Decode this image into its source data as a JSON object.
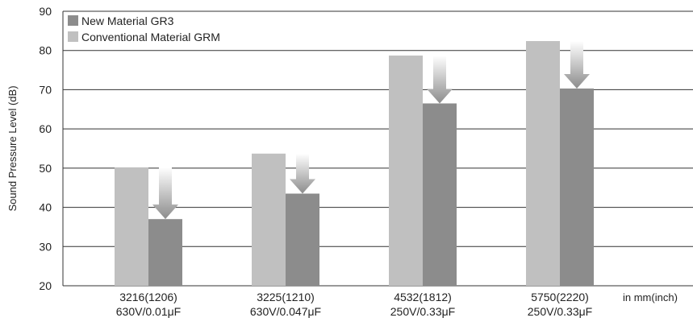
{
  "chart_data": {
    "type": "bar",
    "ylabel": "Sound Pressure Level (dB)",
    "ylim": [
      20,
      90
    ],
    "yticks": [
      20,
      30,
      40,
      50,
      60,
      70,
      80,
      90
    ],
    "grid": true,
    "legend_position": "top-left",
    "categories": [
      {
        "line1": "3216(1206)",
        "line2": "630V/0.01μF"
      },
      {
        "line1": "3225(1210)",
        "line2": "630V/0.047μF"
      },
      {
        "line1": "4532(1812)",
        "line2": "250V/0.33μF"
      },
      {
        "line1": "5750(2220)",
        "line2": "250V/0.33μF"
      }
    ],
    "x_unit_note": "in mm(inch)",
    "series": [
      {
        "name": "New Material GR3",
        "color": "#8c8c8c",
        "values": [
          37,
          43.5,
          66.5,
          70.3
        ]
      },
      {
        "name": "Conventional Material GRM",
        "color": "#c0c0c0",
        "values": [
          50.2,
          53.7,
          78.7,
          82.4
        ]
      }
    ],
    "annotation": "reduction-arrow"
  }
}
